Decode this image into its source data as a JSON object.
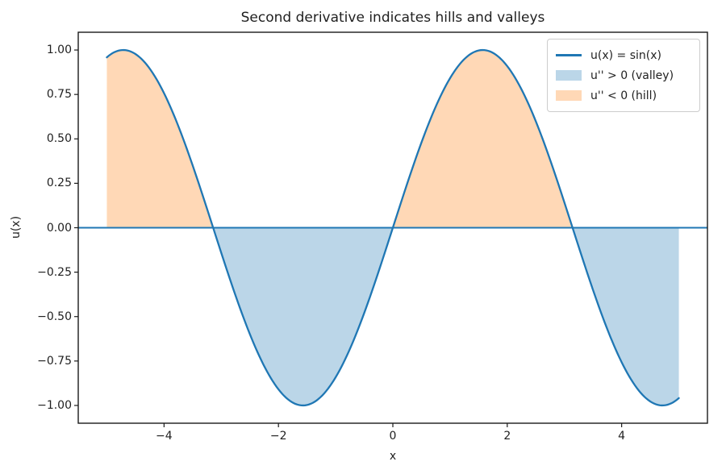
{
  "chart_data": {
    "type": "line",
    "title": "Second derivative indicates hills and valleys",
    "xlabel": "x",
    "ylabel": "u(x)",
    "xlim": [
      -5.5,
      5.5
    ],
    "ylim": [
      -1.1,
      1.1
    ],
    "x_ticks": [
      -4,
      -2,
      0,
      2,
      4
    ],
    "y_ticks": [
      -1.0,
      -0.75,
      -0.5,
      -0.25,
      0.0,
      0.25,
      0.5,
      0.75,
      1.0
    ],
    "grid": false,
    "series": [
      {
        "name": "u(x) = sin(x)",
        "function": "sin",
        "x_range": [
          -5,
          5
        ],
        "color": "#1f77b4",
        "points": [
          [
            -5,
            0.9589
          ],
          [
            -4.75,
            0.9993
          ],
          [
            -4.5,
            0.9775
          ],
          [
            -4.25,
            0.895
          ],
          [
            -4,
            0.7568
          ],
          [
            -3.75,
            0.5716
          ],
          [
            -3.5,
            0.3508
          ],
          [
            -3.25,
            0.1082
          ],
          [
            -3,
            -0.1411
          ],
          [
            -2.75,
            -0.3817
          ],
          [
            -2.5,
            -0.5985
          ],
          [
            -2.25,
            -0.7781
          ],
          [
            -2,
            -0.9093
          ],
          [
            -1.75,
            -0.9839
          ],
          [
            -1.5,
            -0.9975
          ],
          [
            -1.25,
            -0.949
          ],
          [
            -1,
            -0.8415
          ],
          [
            -0.75,
            -0.6816
          ],
          [
            -0.5,
            -0.4794
          ],
          [
            -0.25,
            -0.2474
          ],
          [
            0,
            0
          ],
          [
            0.25,
            0.2474
          ],
          [
            0.5,
            0.4794
          ],
          [
            0.75,
            0.6816
          ],
          [
            1,
            0.8415
          ],
          [
            1.25,
            0.949
          ],
          [
            1.5,
            0.9975
          ],
          [
            1.75,
            0.9839
          ],
          [
            2,
            0.9093
          ],
          [
            2.25,
            0.7781
          ],
          [
            2.5,
            0.5985
          ],
          [
            2.75,
            0.3817
          ],
          [
            3,
            0.1411
          ],
          [
            3.25,
            -0.1082
          ],
          [
            3.5,
            -0.3508
          ],
          [
            3.75,
            -0.5716
          ],
          [
            4,
            -0.7568
          ],
          [
            4.25,
            -0.895
          ],
          [
            4.5,
            -0.9775
          ],
          [
            4.75,
            -0.9993
          ],
          [
            5,
            -0.9589
          ]
        ]
      }
    ],
    "axhline": {
      "y": 0,
      "color": "#1f77b4"
    },
    "fills": [
      {
        "name": "valley",
        "legend_label": "u'' > 0 (valley)",
        "color": "#1f77b4",
        "alpha": 0.3,
        "x_regions": [
          [
            -3.14159265,
            0
          ],
          [
            3.14159265,
            5
          ]
        ]
      },
      {
        "name": "hill",
        "legend_label": "u'' < 0 (hill)",
        "color": "#ff7f0e",
        "alpha": 0.3,
        "x_regions": [
          [
            -5,
            -3.14159265
          ],
          [
            0,
            3.14159265
          ]
        ]
      }
    ],
    "legend": {
      "position": "upper right",
      "entries": [
        {
          "label": "u(x) = sin(x)",
          "type": "line",
          "color": "#1f77b4"
        },
        {
          "label": "u'' > 0 (valley)",
          "type": "patch",
          "color": "#1f77b4",
          "alpha": 0.3
        },
        {
          "label": "u'' < 0 (hill)",
          "type": "patch",
          "color": "#ff7f0e",
          "alpha": 0.3
        }
      ]
    },
    "spine_color": "#1a1a1a"
  }
}
